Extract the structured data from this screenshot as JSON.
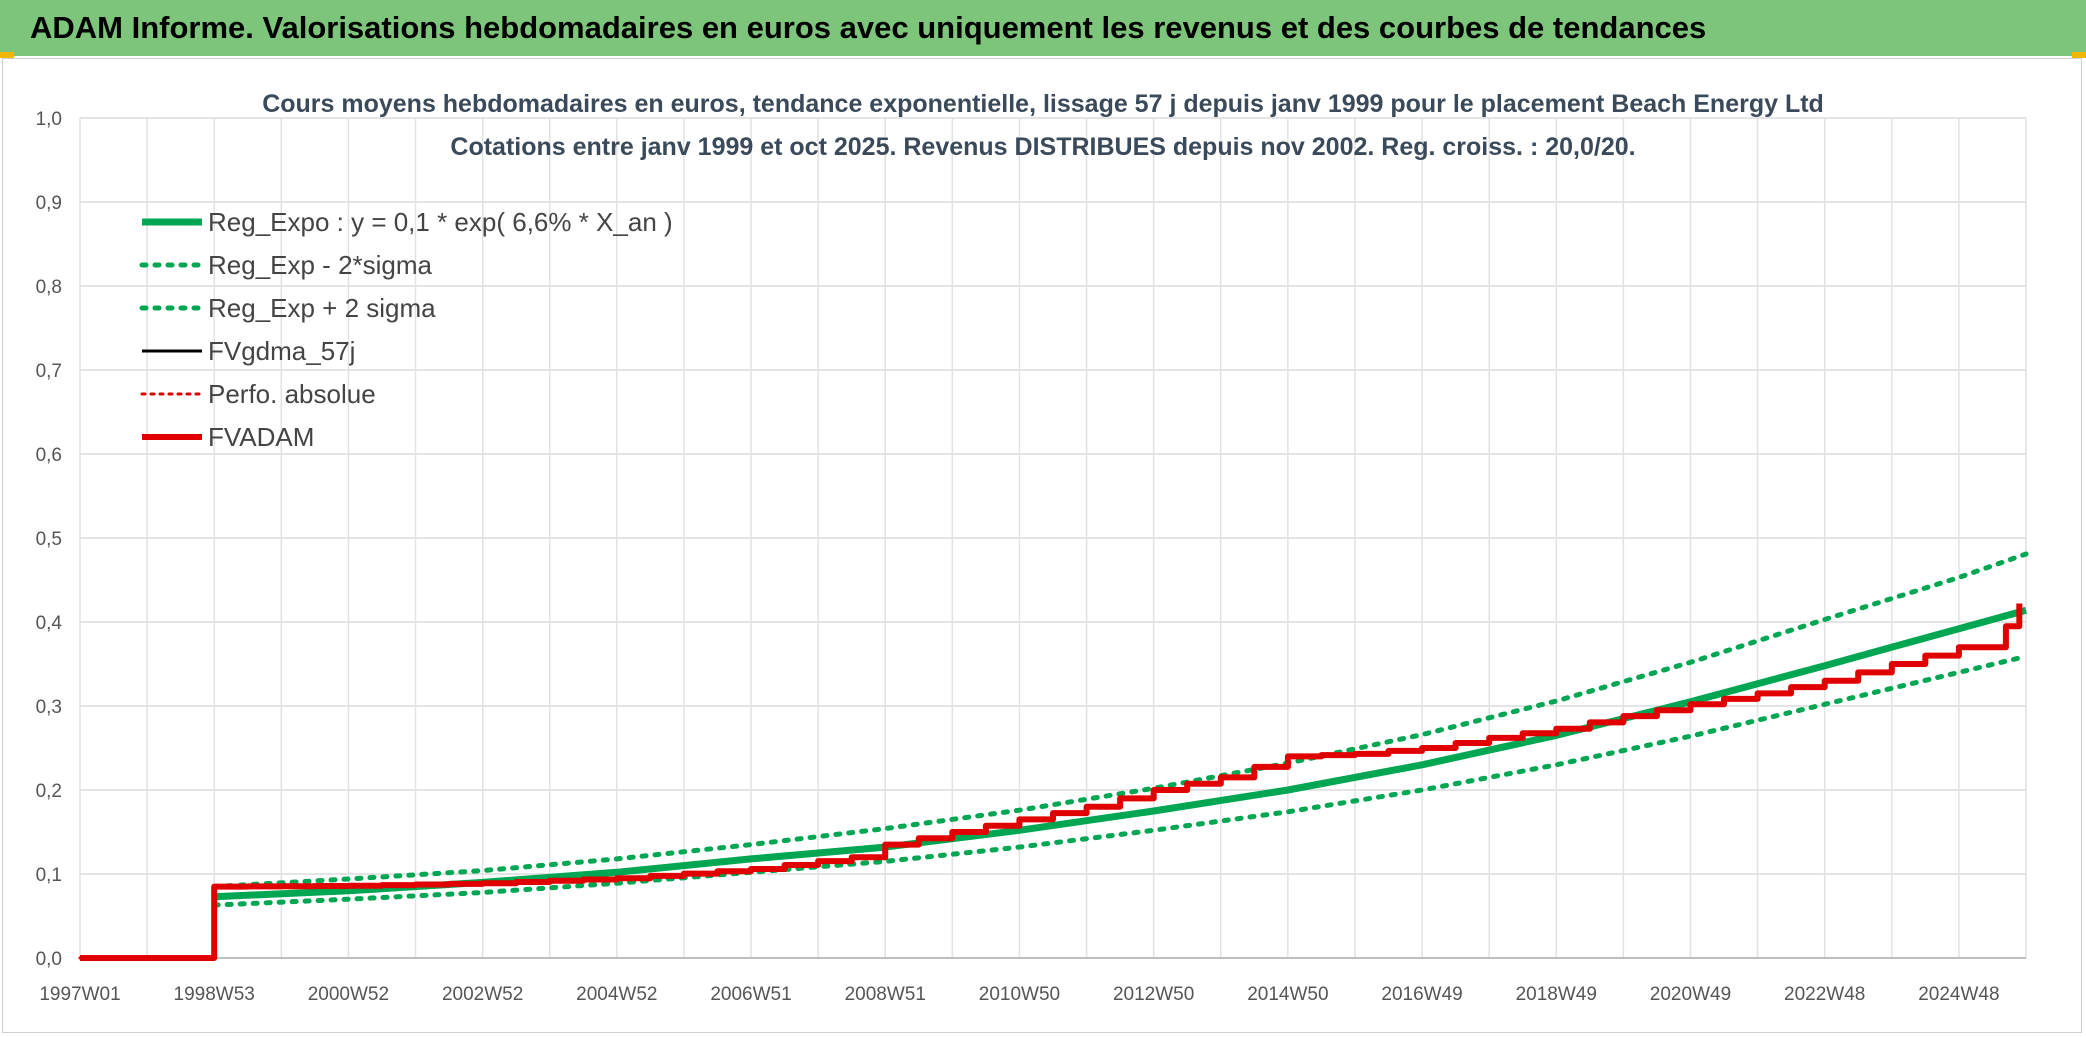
{
  "banner": {
    "title": "ADAM Informe. Valorisations hebdomadaires en euros avec uniquement les revenus et des courbes de tendances"
  },
  "colors": {
    "banner_bg": "#7cc57b",
    "reg": "#00a651",
    "fv_black": "#000000",
    "adam_red": "#e00000"
  },
  "chart_data": {
    "type": "line",
    "title": "Cours moyens hebdomadaires en euros, tendance exponentielle, lissage 57 j depuis janv 1999 pour le placement Beach Energy Ltd",
    "subtitle": "Cotations entre janv 1999 et oct 2025. Revenus DISTRIBUES depuis nov 2002. Reg. croiss. : 20,0/20.",
    "xlabel": "",
    "ylabel": "",
    "x_tick_labels": [
      "1997W01",
      "1998W53",
      "2000W52",
      "2002W52",
      "2004W52",
      "2006W51",
      "2008W51",
      "2010W50",
      "2012W50",
      "2014W50",
      "2016W49",
      "2018W49",
      "2020W49",
      "2022W48",
      "2024W48"
    ],
    "x_tick_years": [
      1997.0,
      1999.0,
      2001.0,
      2003.0,
      2005.0,
      2007.0,
      2009.0,
      2011.0,
      2013.0,
      2015.0,
      2017.0,
      2019.0,
      2021.0,
      2023.0,
      2025.0
    ],
    "xlim": [
      1997.0,
      2026.0
    ],
    "ylim": [
      0,
      1.0
    ],
    "y_ticks": [
      "0,0",
      "0,1",
      "0,2",
      "0,3",
      "0,4",
      "0,5",
      "0,6",
      "0,7",
      "0,8",
      "0,9",
      "1,0"
    ],
    "grid": true,
    "legend_position": "top-left",
    "series": [
      {
        "name": "Reg_Expo : y = 0,1 * exp( 6,6% *  X_an )",
        "color": "#00a651",
        "style": "solid",
        "width": 7,
        "x": [
          1999.0,
          2001.0,
          2003.0,
          2005.0,
          2007.0,
          2009.0,
          2011.0,
          2013.0,
          2015.0,
          2017.0,
          2019.0,
          2021.0,
          2023.0,
          2025.0,
          2026.0
        ],
        "y": [
          0.073,
          0.08,
          0.09,
          0.102,
          0.118,
          0.132,
          0.152,
          0.175,
          0.2,
          0.23,
          0.265,
          0.305,
          0.348,
          0.392,
          0.414
        ]
      },
      {
        "name": "Reg_Exp - 2*sigma",
        "color": "#00a651",
        "style": "dotted",
        "width": 5,
        "x": [
          1999.0,
          2001.0,
          2003.0,
          2005.0,
          2007.0,
          2009.0,
          2011.0,
          2013.0,
          2015.0,
          2017.0,
          2019.0,
          2021.0,
          2023.0,
          2025.0,
          2026.0
        ],
        "y": [
          0.063,
          0.07,
          0.078,
          0.089,
          0.102,
          0.115,
          0.132,
          0.152,
          0.174,
          0.2,
          0.23,
          0.264,
          0.302,
          0.34,
          0.359
        ]
      },
      {
        "name": "Reg_Exp + 2 sigma",
        "color": "#00a651",
        "style": "dotted",
        "width": 5,
        "x": [
          1999.0,
          2001.0,
          2003.0,
          2005.0,
          2007.0,
          2009.0,
          2011.0,
          2013.0,
          2015.0,
          2017.0,
          2019.0,
          2021.0,
          2023.0,
          2025.0,
          2026.0
        ],
        "y": [
          0.085,
          0.094,
          0.104,
          0.118,
          0.135,
          0.154,
          0.176,
          0.202,
          0.232,
          0.266,
          0.306,
          0.352,
          0.403,
          0.453,
          0.481
        ]
      },
      {
        "name": "FVgdma_57j",
        "color": "#000000",
        "style": "solid",
        "width": 3,
        "x": [
          1997.0,
          1999.0,
          1999.0,
          2001.0,
          2003.0,
          2005.0,
          2007.0,
          2008.5,
          2009.0,
          2010.0,
          2011.0,
          2012.0,
          2013.0,
          2014.0,
          2015.0,
          2016.0,
          2017.0,
          2018.0,
          2019.0,
          2020.0,
          2021.0,
          2022.0,
          2023.0,
          2024.0,
          2025.0,
          2025.7,
          2025.9
        ],
        "y": [
          0.0,
          0.0,
          0.085,
          0.086,
          0.089,
          0.095,
          0.106,
          0.12,
          0.135,
          0.15,
          0.165,
          0.18,
          0.2,
          0.215,
          0.24,
          0.243,
          0.25,
          0.262,
          0.273,
          0.288,
          0.302,
          0.315,
          0.33,
          0.35,
          0.37,
          0.395,
          0.418
        ]
      },
      {
        "name": "Perfo. absolue",
        "color": "#e00000",
        "style": "dotted",
        "width": 3,
        "x": [
          1997.0,
          1999.0,
          1999.0,
          2001.0,
          2003.0,
          2005.0,
          2007.0,
          2008.5,
          2009.0,
          2010.0,
          2011.0,
          2012.0,
          2013.0,
          2014.0,
          2015.0,
          2016.0,
          2017.0,
          2018.0,
          2019.0,
          2020.0,
          2021.0,
          2022.0,
          2023.0,
          2024.0,
          2025.0,
          2025.7,
          2025.9
        ],
        "y": [
          0.0,
          0.0,
          0.085,
          0.086,
          0.089,
          0.095,
          0.106,
          0.12,
          0.135,
          0.15,
          0.165,
          0.18,
          0.2,
          0.215,
          0.24,
          0.243,
          0.25,
          0.262,
          0.273,
          0.288,
          0.302,
          0.315,
          0.33,
          0.35,
          0.37,
          0.395,
          0.422
        ]
      },
      {
        "name": "FVADAM",
        "color": "#e00000",
        "style": "solid",
        "width": 6,
        "x": [
          1997.0,
          1999.0,
          1999.0,
          2001.0,
          2003.0,
          2005.0,
          2007.0,
          2008.5,
          2009.0,
          2010.0,
          2011.0,
          2012.0,
          2013.0,
          2014.0,
          2015.0,
          2016.0,
          2017.0,
          2018.0,
          2019.0,
          2020.0,
          2021.0,
          2022.0,
          2023.0,
          2024.0,
          2025.0,
          2025.7,
          2025.9
        ],
        "y": [
          0.0,
          0.0,
          0.085,
          0.086,
          0.089,
          0.095,
          0.106,
          0.12,
          0.135,
          0.15,
          0.165,
          0.18,
          0.2,
          0.215,
          0.24,
          0.243,
          0.25,
          0.262,
          0.273,
          0.288,
          0.302,
          0.315,
          0.33,
          0.35,
          0.37,
          0.395,
          0.422
        ]
      }
    ]
  }
}
